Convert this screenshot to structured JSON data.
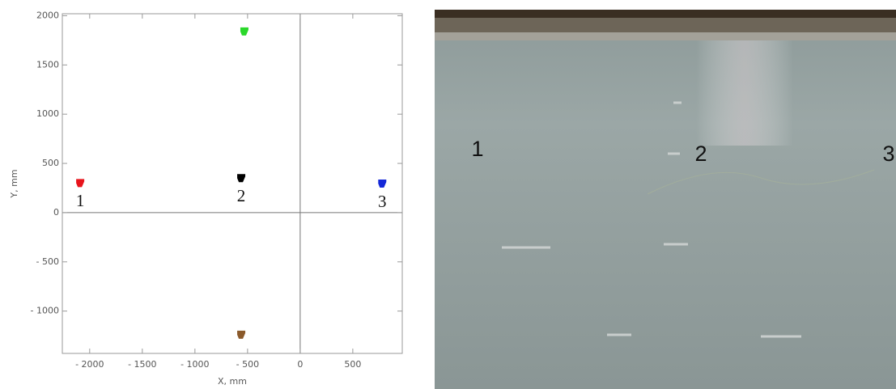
{
  "chart_data": {
    "type": "scatter",
    "xlabel": "X, mm",
    "ylabel": "Y, mm",
    "xlim": [
      -2260,
      970
    ],
    "ylim": [
      -1430,
      2020
    ],
    "xticks": [
      {
        "value": -2000,
        "label": "- 2000"
      },
      {
        "value": -1500,
        "label": "- 1500"
      },
      {
        "value": -1000,
        "label": "- 1000"
      },
      {
        "value": -500,
        "label": "- 500"
      },
      0,
      500
    ],
    "yticks": [
      {
        "value": -1000,
        "label": "- 1000"
      },
      {
        "value": -500,
        "label": "- 500"
      },
      0,
      500,
      1000,
      1500,
      2000
    ],
    "points": [
      {
        "x": -2090,
        "y": 300,
        "color": "#e8141c",
        "label": "1"
      },
      {
        "x": -560,
        "y": 350,
        "color": "#000000",
        "label": "2"
      },
      {
        "x": 780,
        "y": 295,
        "color": "#1428d8",
        "label": "3"
      },
      {
        "x": -530,
        "y": 1840,
        "color": "#2ad82a"
      },
      {
        "x": -560,
        "y": -1240,
        "color": "#8b5a2b"
      }
    ]
  },
  "photo": {
    "labels": [
      "1",
      "2",
      "3"
    ]
  }
}
